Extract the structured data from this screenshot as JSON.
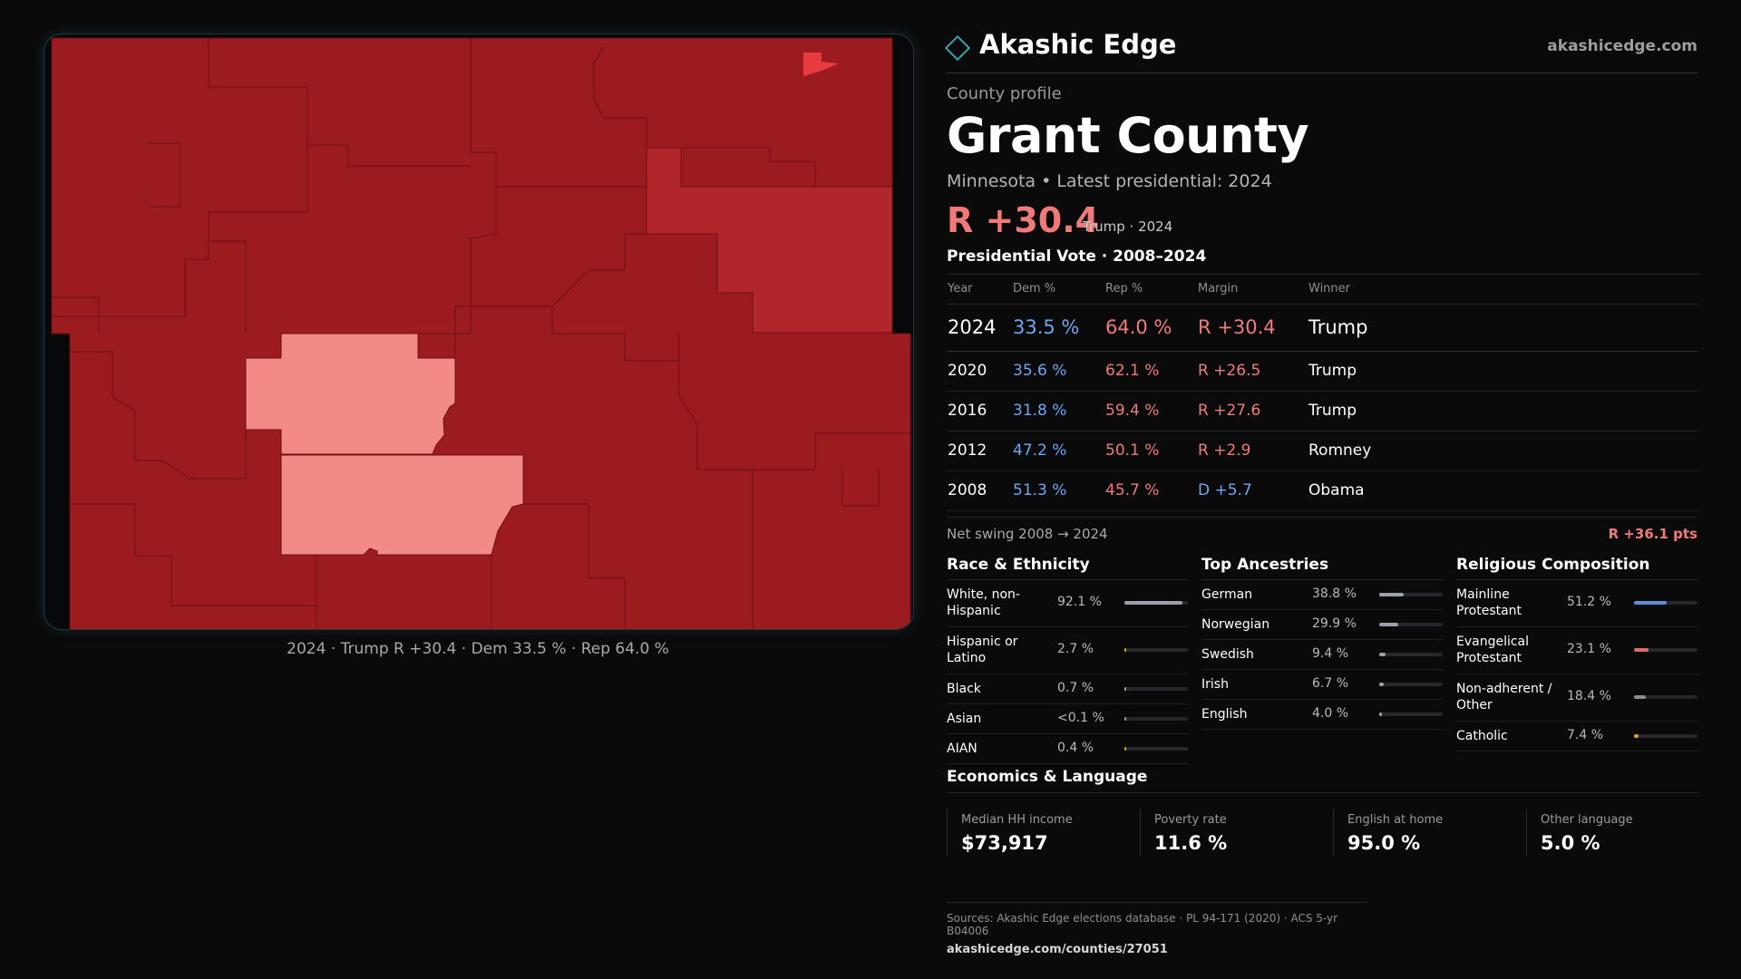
{
  "brand": {
    "name": "Akashic Edge",
    "site": "akashicedge.com"
  },
  "map": {
    "caption": "2024 · Trump R +30.4 · Dem 33.5 % · Rep 64.0 %",
    "colors": {
      "strong_rep": "#9b1b1f",
      "medium_rep": "#b0262a",
      "light_rep": "#f28a86",
      "accent": "#e63b40"
    }
  },
  "profile": {
    "kicker": "County profile",
    "county": "Grant County",
    "subline": "Minnesota • Latest presidential: 2024",
    "margin": "R +30.4",
    "margin_note": "Trump · 2024"
  },
  "votes": {
    "title": "Presidential Vote · 2008–2024",
    "headers": {
      "year": "Year",
      "dem": "Dem %",
      "rep": "Rep %",
      "margin": "Margin",
      "winner": "Winner"
    },
    "rows": [
      {
        "year": "2024",
        "dem": "33.5 %",
        "rep": "64.0 %",
        "margin": "R +30.4",
        "winner": "Trump"
      },
      {
        "year": "2020",
        "dem": "35.6 %",
        "rep": "62.1 %",
        "margin": "R +26.5",
        "winner": "Trump"
      },
      {
        "year": "2016",
        "dem": "31.8 %",
        "rep": "59.4 %",
        "margin": "R +27.6",
        "winner": "Trump"
      },
      {
        "year": "2012",
        "dem": "47.2 %",
        "rep": "50.1 %",
        "margin": "R +2.9",
        "winner": "Romney"
      },
      {
        "year": "2008",
        "dem": "51.3 %",
        "rep": "45.7 %",
        "margin": "D +5.7",
        "winner": "Obama"
      }
    ],
    "swing_label": "Net swing 2008 → 2024",
    "swing_value": "R +36.1 pts"
  },
  "race": {
    "title": "Race & Ethnicity",
    "items": [
      {
        "label": "White, non-Hispanic",
        "value": "92.1 %",
        "pct": 92.1,
        "color": "#9ca0a8"
      },
      {
        "label": "Hispanic or Latino",
        "value": "2.7 %",
        "pct": 2.7,
        "color": "#e0a030"
      },
      {
        "label": "Black",
        "value": "0.7 %",
        "pct": 0.7,
        "color": "#9ca0a8"
      },
      {
        "label": "Asian",
        "value": "<0.1 %",
        "pct": 0.05,
        "color": "#9ca0a8"
      },
      {
        "label": "AIAN",
        "value": "0.4 %",
        "pct": 0.4,
        "color": "#e0a030"
      }
    ]
  },
  "ancestry": {
    "title": "Top Ancestries",
    "items": [
      {
        "label": "German",
        "value": "38.8 %",
        "pct": 38.8,
        "color": "#9ca0a8"
      },
      {
        "label": "Norwegian",
        "value": "29.9 %",
        "pct": 29.9,
        "color": "#9ca0a8"
      },
      {
        "label": "Swedish",
        "value": "9.4 %",
        "pct": 9.4,
        "color": "#9ca0a8"
      },
      {
        "label": "Irish",
        "value": "6.7 %",
        "pct": 6.7,
        "color": "#9ca0a8"
      },
      {
        "label": "English",
        "value": "4.0 %",
        "pct": 4.0,
        "color": "#9ca0a8"
      }
    ]
  },
  "religion": {
    "title": "Religious Composition",
    "items": [
      {
        "label": "Mainline Protestant",
        "value": "51.2 %",
        "pct": 51.2,
        "color": "#5b8fd8"
      },
      {
        "label": "Evangelical Protestant",
        "value": "23.1 %",
        "pct": 23.1,
        "color": "#e06b6b"
      },
      {
        "label": "Non-adherent / Other",
        "value": "18.4 %",
        "pct": 18.4,
        "color": "#8a8d94"
      },
      {
        "label": "Catholic",
        "value": "7.4 %",
        "pct": 7.4,
        "color": "#e0a030"
      }
    ]
  },
  "economics": {
    "title": "Economics & Language",
    "items": [
      {
        "label": "Median HH income",
        "value": "$73,917"
      },
      {
        "label": "Poverty rate",
        "value": "11.6 %"
      },
      {
        "label": "English at home",
        "value": "95.0 %"
      },
      {
        "label": "Other language",
        "value": "5.0 %"
      }
    ]
  },
  "footer": {
    "sources": "Sources: Akashic Edge elections database · PL 94-171 (2020) · ACS 5-yr B04006",
    "url": "akashicedge.com/counties/27051"
  }
}
